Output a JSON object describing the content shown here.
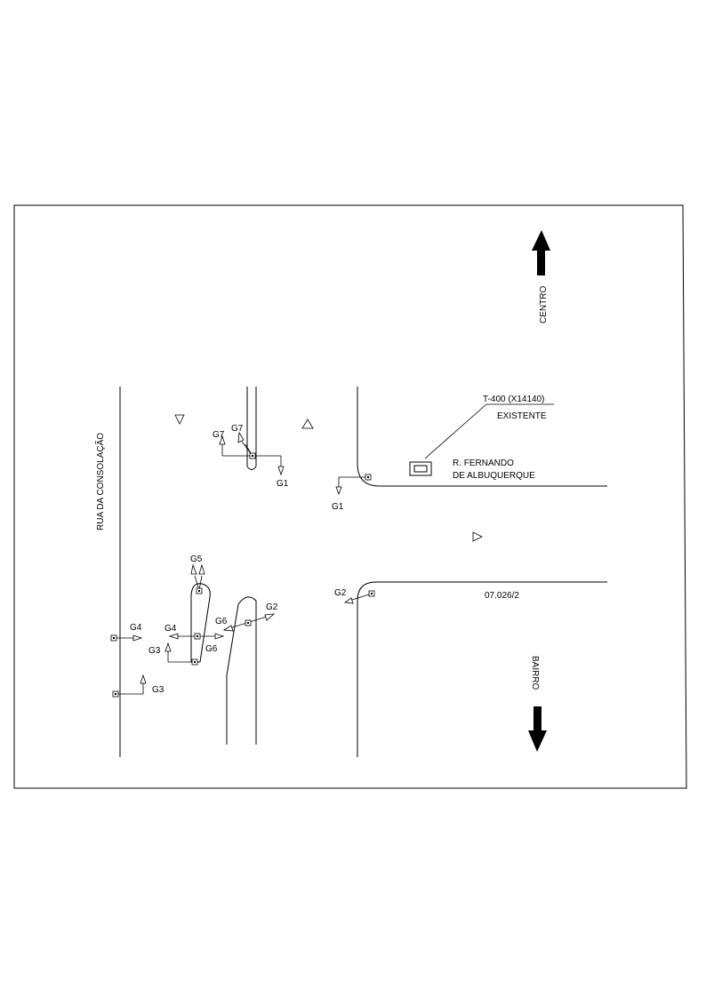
{
  "streets": {
    "consolacao": "RUA DA CONSOLAÇÃO",
    "fernando_line1": "R. FERNANDO",
    "fernando_line2": "DE ALBUQUERQUE"
  },
  "directions": {
    "north": "CENTRO",
    "south": "BAIRRO"
  },
  "controller": {
    "id": "T-400 (X14140)",
    "status": "EXISTENTE"
  },
  "site_code": "07.026/2",
  "signal_groups": [
    "G1",
    "G2",
    "G3",
    "G4",
    "G5",
    "G6",
    "G7"
  ],
  "labels": [
    {
      "id": "g7-a",
      "text": "G7"
    },
    {
      "id": "g7-b",
      "text": "G7"
    },
    {
      "id": "g1-a",
      "text": "G1"
    },
    {
      "id": "g1-b",
      "text": "G1"
    },
    {
      "id": "g5",
      "text": "G5"
    },
    {
      "id": "g2-a",
      "text": "G2"
    },
    {
      "id": "g2-b",
      "text": "G2"
    },
    {
      "id": "g4-a",
      "text": "G4"
    },
    {
      "id": "g4-b",
      "text": "G4"
    },
    {
      "id": "g6-a",
      "text": "G6"
    },
    {
      "id": "g6-b",
      "text": "G6"
    },
    {
      "id": "g3-a",
      "text": "G3"
    },
    {
      "id": "g3-b",
      "text": "G3"
    }
  ]
}
